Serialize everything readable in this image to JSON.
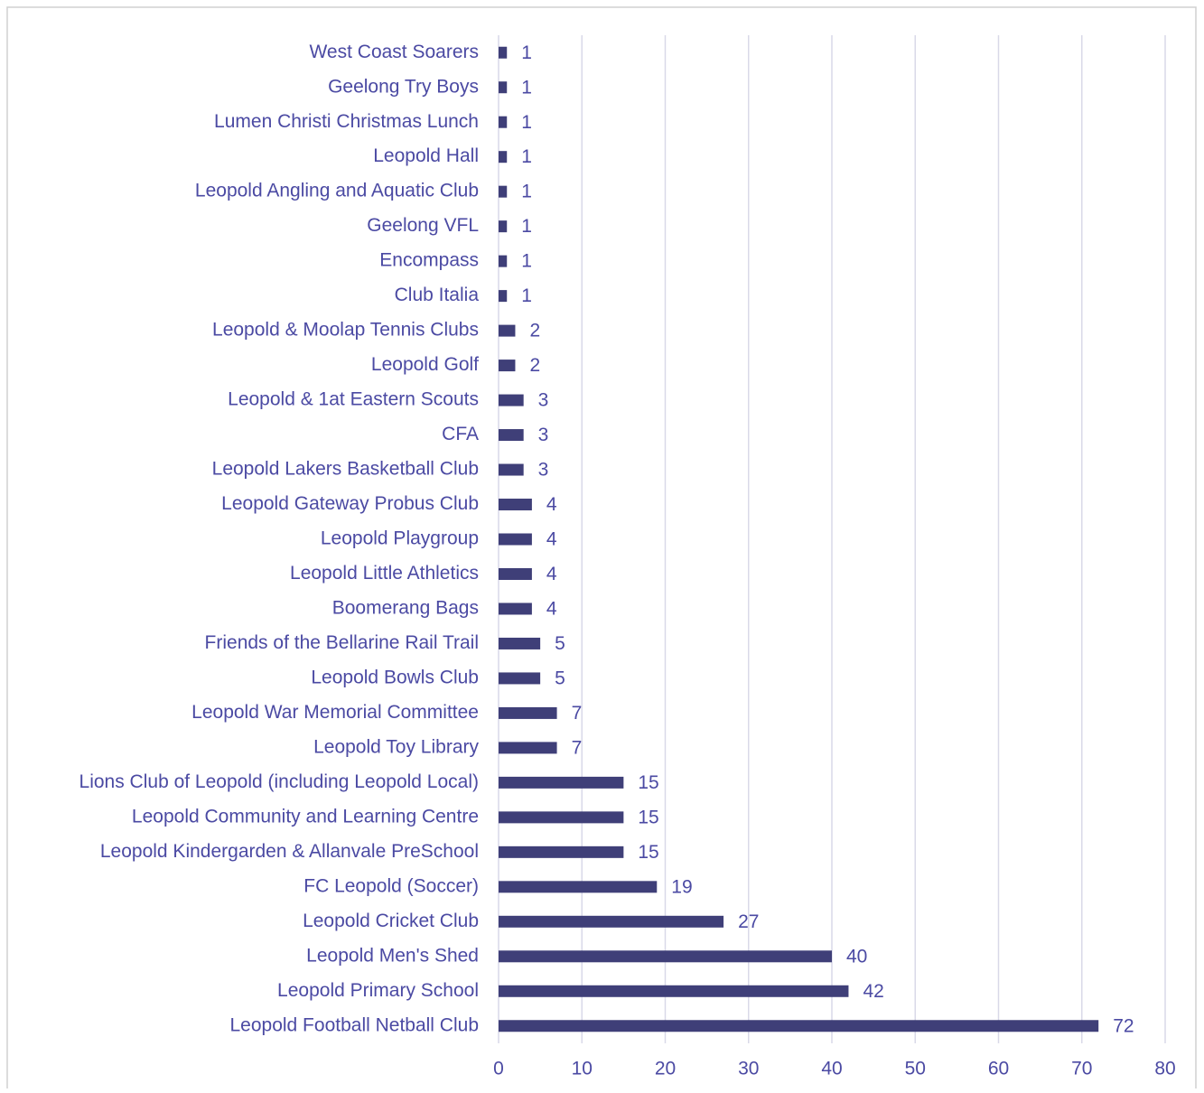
{
  "chart_data": {
    "type": "barh",
    "categories": [
      "West Coast Soarers",
      "Geelong Try Boys",
      "Lumen Christi Christmas Lunch",
      "Leopold Hall",
      "Leopold Angling and Aquatic Club",
      "Geelong VFL",
      "Encompass",
      "Club Italia",
      "Leopold & Moolap Tennis Clubs",
      "Leopold Golf",
      "Leopold & 1at Eastern Scouts",
      "CFA",
      "Leopold Lakers Basketball Club",
      "Leopold Gateway Probus Club",
      "Leopold Playgroup",
      "Leopold Little Athletics",
      "Boomerang Bags",
      "Friends of the Bellarine Rail Trail",
      "Leopold Bowls Club",
      "Leopold War Memorial Committee",
      "Leopold Toy Library",
      "Lions Club of Leopold (including Leopold Local)",
      "Leopold Community and Learning Centre",
      "Leopold Kindergarden & Allanvale PreSchool",
      "FC Leopold (Soccer)",
      "Leopold Cricket Club",
      "Leopold Men's Shed",
      "Leopold Primary School",
      "Leopold Football Netball Club"
    ],
    "values": [
      1,
      1,
      1,
      1,
      1,
      1,
      1,
      1,
      2,
      2,
      3,
      3,
      3,
      4,
      4,
      4,
      4,
      5,
      5,
      7,
      7,
      15,
      15,
      15,
      19,
      27,
      40,
      42,
      72
    ],
    "color": "#3f3f78",
    "xlim": [
      0,
      80
    ],
    "xticks": [
      0,
      10,
      20,
      30,
      40,
      50,
      60,
      70,
      80
    ],
    "grid": true
  }
}
